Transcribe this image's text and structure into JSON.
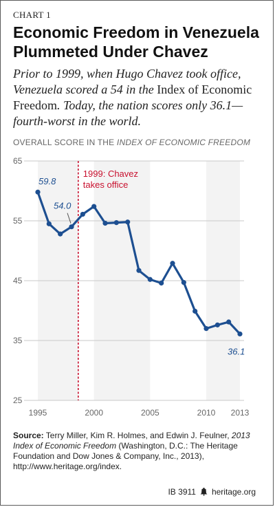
{
  "header": {
    "chart_label": "CHART 1",
    "title_line1": "Economic Freedom in Venezuela",
    "title_line2": "Plummeted Under Chavez",
    "subtitle": [
      {
        "text": "Prior to 1999, when Hugo Chavez took office, Venezuela scored a 54 in the ",
        "style": "it"
      },
      {
        "text": "Index of Economic Freedom",
        "style": "rm"
      },
      {
        "text": ". Today, the nation scores only 36.1—fourth-worst in the world.",
        "style": "it"
      }
    ]
  },
  "plot_heading": {
    "prefix": "OVERALL SCORE IN THE ",
    "italic": "INDEX OF ECONOMIC FREEDOM"
  },
  "chart_data": {
    "type": "line",
    "title": "Economic Freedom in Venezuela Plummeted Under Chavez",
    "xlabel": "",
    "ylabel": "OVERALL SCORE IN THE INDEX OF ECONOMIC FREEDOM",
    "xlim": [
      1995,
      2013
    ],
    "ylim": [
      25,
      65
    ],
    "x_ticks": [
      1995,
      2000,
      2005,
      2010,
      2013
    ],
    "y_ticks": [
      25,
      35,
      45,
      55,
      65
    ],
    "grid": "horizontal",
    "series": [
      {
        "name": "",
        "color": "#1d4f91",
        "x": [
          1995,
          1996,
          1997,
          1998,
          1999,
          2000,
          2001,
          2002,
          2003,
          2004,
          2005,
          2006,
          2007,
          2008,
          2009,
          2010,
          2011,
          2012,
          2013
        ],
        "y": [
          59.8,
          54.5,
          52.8,
          54.0,
          56.1,
          57.4,
          54.6,
          54.7,
          54.8,
          46.7,
          45.2,
          44.6,
          47.9,
          44.7,
          39.9,
          37.0,
          37.6,
          38.1,
          36.1
        ]
      }
    ],
    "point_labels": [
      {
        "x": 1995,
        "y": 59.8,
        "text": "59.8"
      },
      {
        "x": 1998,
        "y": 54.0,
        "text": "54.0"
      },
      {
        "x": 2013,
        "y": 36.1,
        "text": "36.1"
      }
    ],
    "shaded_bands": [
      [
        1995,
        1998.6
      ],
      [
        2000,
        2005
      ],
      [
        2010,
        2013
      ]
    ],
    "annotation": {
      "x": 1998.6,
      "line1": "1999: Chavez",
      "line2": "takes office",
      "color": "#c8102e"
    }
  },
  "source": {
    "label": "Source:",
    "text1": " Terry Miller, Kim R. Holmes, and Edwin J. Feulner, ",
    "italic": "2013 Index of Economic Freedom",
    "text2": " (Washington, D.C.: The Heritage Foundation and Dow Jones & Company, Inc., 2013), http://www.heritage.org/index."
  },
  "footer": {
    "ib": "IB 3911",
    "site": "heritage.org",
    "icon": "liberty-bell-icon"
  }
}
